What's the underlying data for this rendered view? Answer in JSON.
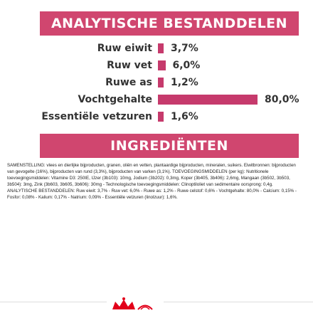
{
  "analysis": {
    "title": "ANALYTISCHE BESTANDDELEN",
    "rows": [
      {
        "label": "Ruw eiwit",
        "value": "3,7%",
        "percent": 3.7
      },
      {
        "label": "Ruw vet",
        "value": "6,0%",
        "percent": 6.0
      },
      {
        "label": "Ruwe as",
        "value": "1,2%",
        "percent": 1.2
      },
      {
        "label": "Vochtgehalte",
        "value": "80,0%",
        "percent": 80.0
      },
      {
        "label": "Essentiële vetzuren",
        "value": "1,6%",
        "percent": 1.6
      }
    ]
  },
  "ingredients": {
    "title": "INGREDIËNTEN",
    "text": "SAMENSTELLING: vlees en dierlijke bijproducten, granen, oliën en vetten, plantaardige bijproducten, mineralen, suikers. Eiwitbronnen: bijproducten van gevogelte (16%), bijproducten van rund (3,3%), bijproducten van varken (3,1%). TOEVOEGINGSMIDDELEN (per kg): Nutritionele toevoegingsmiddelen: Vitamine D3: 250IE, IJzer (3b103): 10mg, Jodium (3b202): 0,3mg, Koper (3b405, 3b406): 2,6mg, Mangaan (3b502, 3b503, 3b504): 3mg, Zink (3b603, 3b605, 3b606): 30mg - Technologische toevoegingsmiddelen: Clinoptiloliet van sedimentaire oorsprong: 0,4g. ANALYTISCHE BESTANDDELEN: Ruw eiwit: 3,7% - Ruw vet: 6,0% - Ruwe as: 1,2% - Ruwe celstof: 0,6% - Vochtgehalte: 80,0% - Calcium: 0,15% - Fosfor: 0,08% - Kalium: 0,17% - Natrium: 0,09% - Essentiële vetzuren (linolzuur): 1,6%."
  },
  "colors": {
    "accent": "#d0466f",
    "bar": "#c63a6c",
    "logo": "#e2001a"
  },
  "logo": {
    "name": "royal-canin-crown-logo"
  }
}
